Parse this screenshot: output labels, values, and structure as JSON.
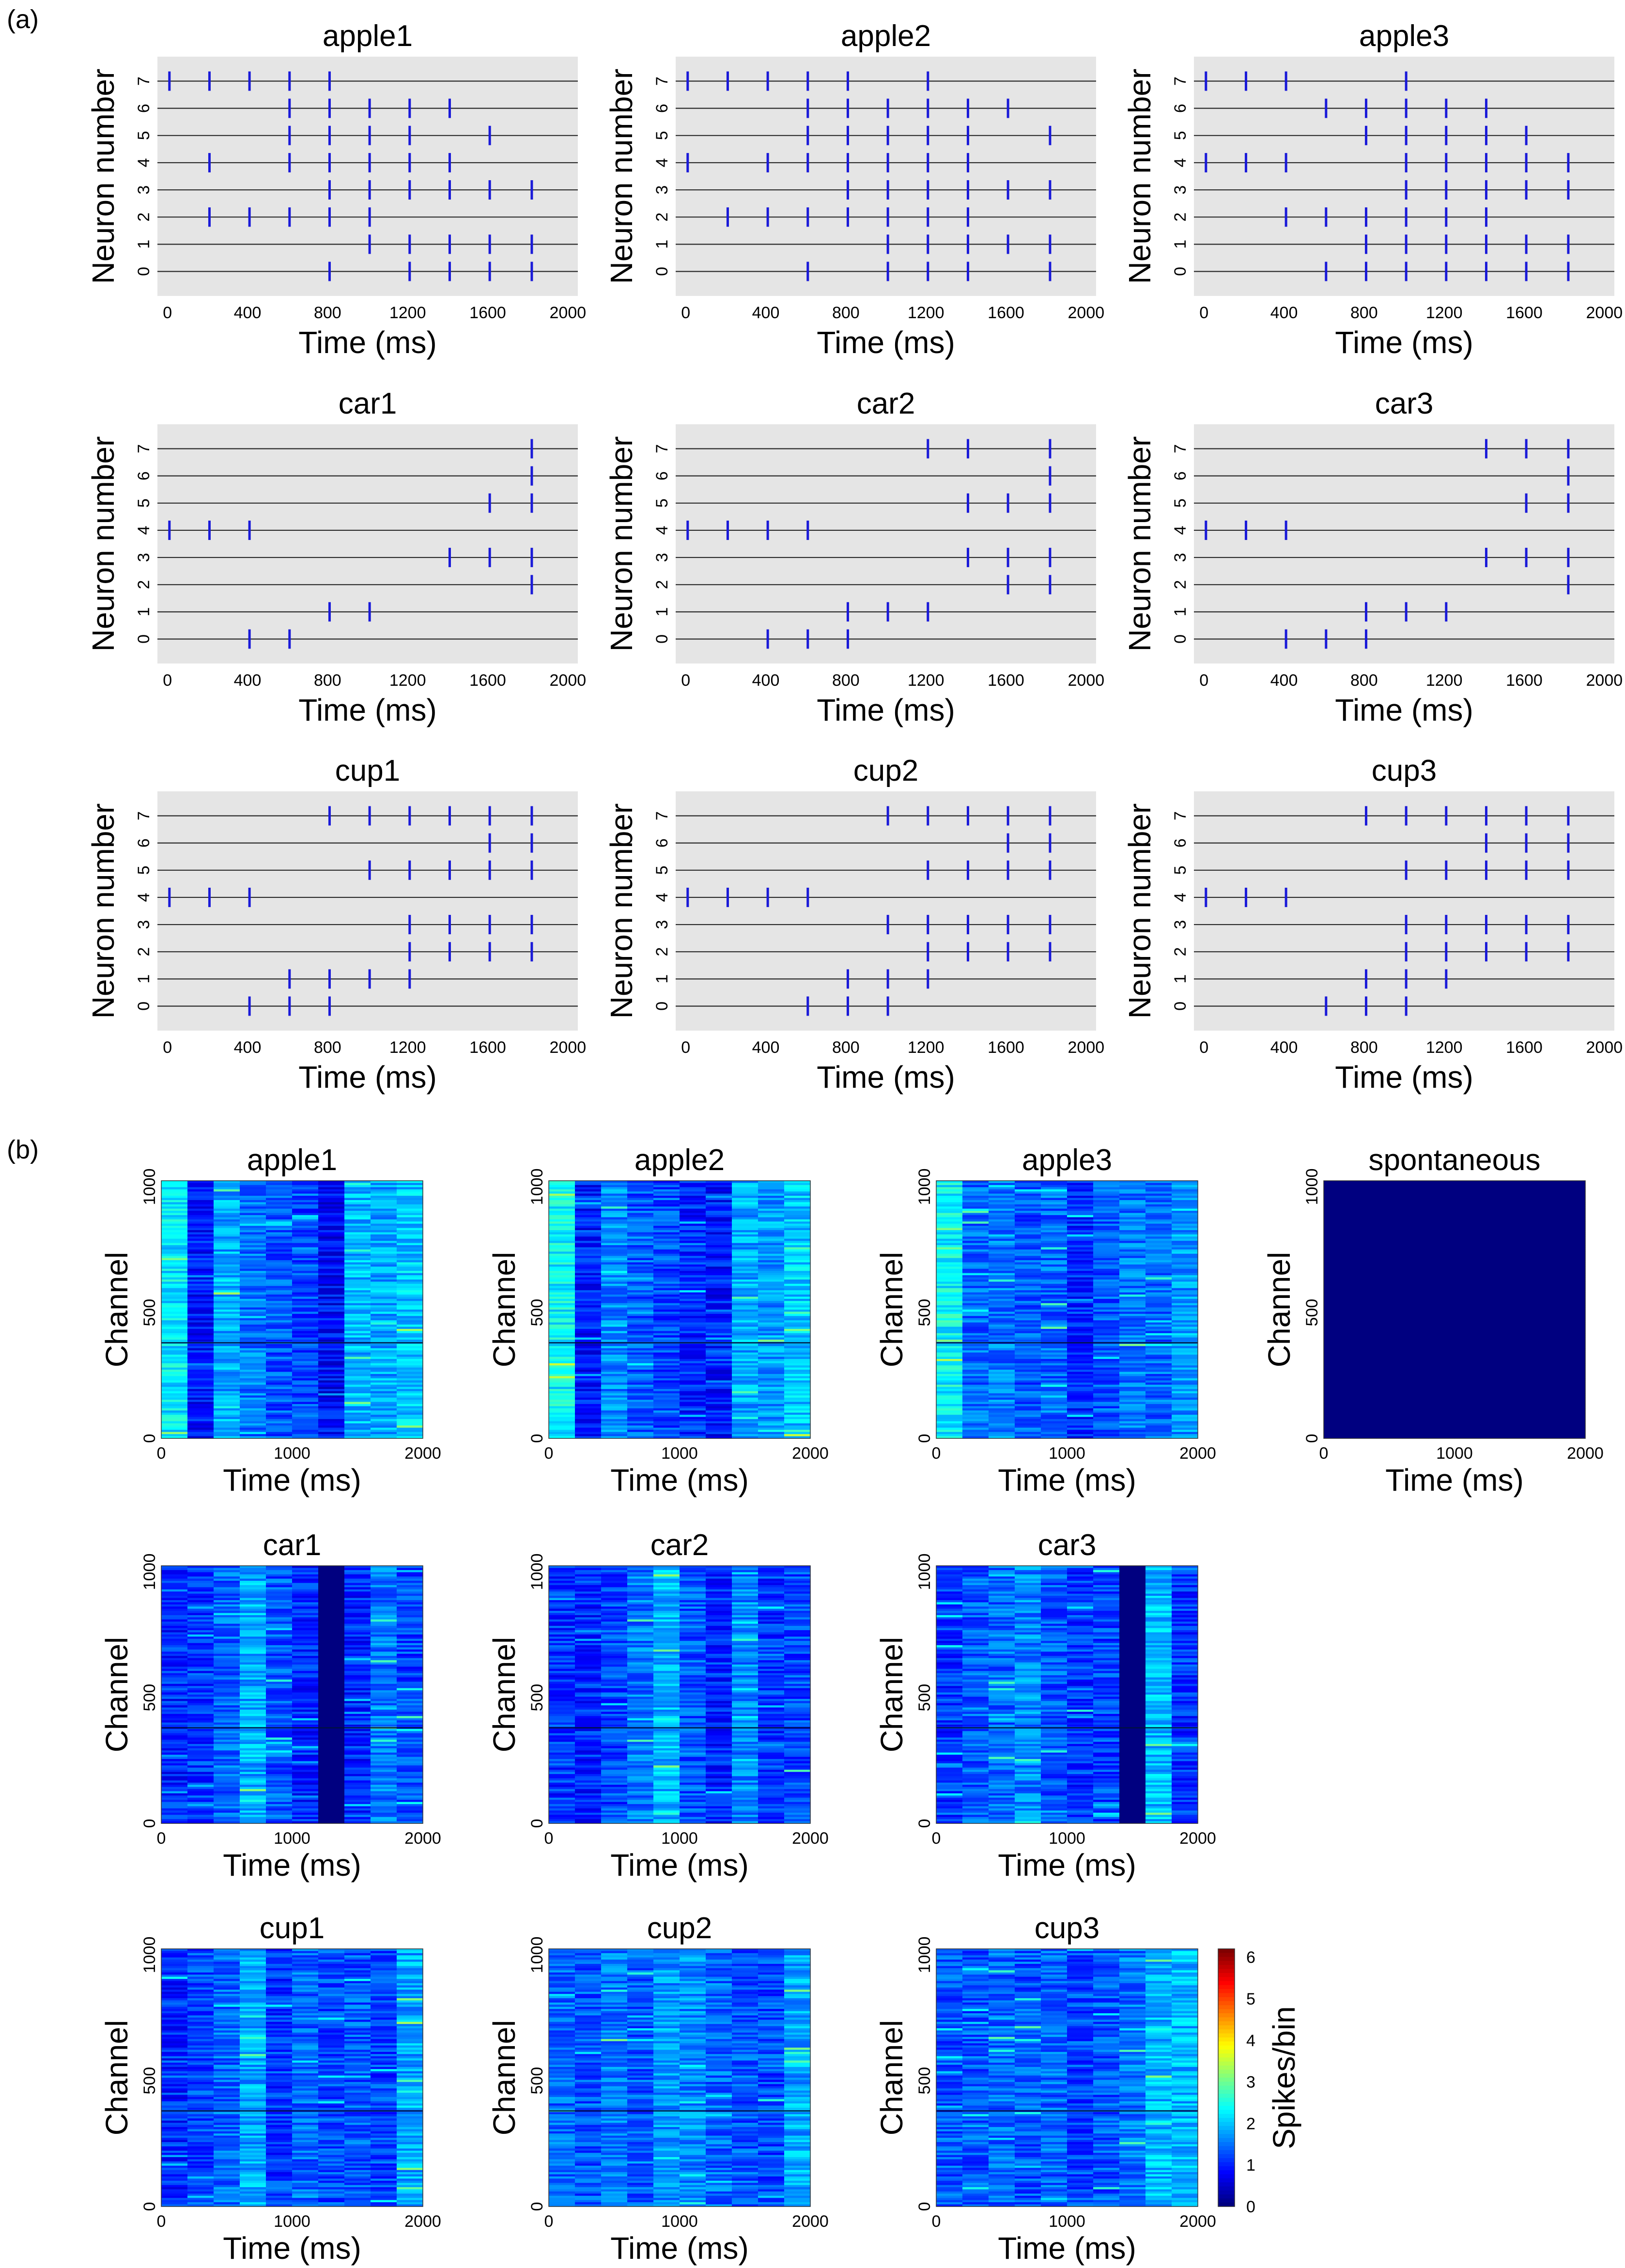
{
  "figure": {
    "panel_a_label": "(a)",
    "panel_b_label": "(b)"
  },
  "chart_data": [
    {
      "type": "raster",
      "panel": "a",
      "x_label": "Time (ms)",
      "y_label": "Neuron number",
      "xlim": [
        -50,
        2050
      ],
      "ylim": [
        -0.9,
        7.9
      ],
      "x_ticks": [
        0,
        400,
        800,
        1200,
        1600,
        2000
      ],
      "y_ticks": [
        0,
        1,
        2,
        3,
        4,
        5,
        6,
        7
      ],
      "spike_marker_color": "#1a1ad8",
      "background_color": "#e5e5e5",
      "subplots": [
        {
          "title": "apple1",
          "spikes": [
            [
              810,
              1210,
              1410,
              1610,
              1820
            ],
            [
              1010,
              1210,
              1410,
              1610,
              1820
            ],
            [
              210,
              410,
              610,
              810,
              1010
            ],
            [
              810,
              1010,
              1210,
              1410,
              1610,
              1820
            ],
            [
              210,
              610,
              810,
              1010,
              1210,
              1410
            ],
            [
              610,
              810,
              1010,
              1210,
              1610
            ],
            [
              610,
              810,
              1010,
              1210,
              1410
            ],
            [
              10,
              210,
              410,
              610,
              810
            ]
          ]
        },
        {
          "title": "apple2",
          "spikes": [
            [
              610,
              1010,
              1210,
              1410,
              1820
            ],
            [
              1010,
              1210,
              1410,
              1610,
              1820
            ],
            [
              210,
              410,
              610,
              810,
              1010,
              1210,
              1410
            ],
            [
              810,
              1010,
              1210,
              1410,
              1610,
              1820
            ],
            [
              10,
              410,
              610,
              810,
              1010,
              1210,
              1410
            ],
            [
              610,
              810,
              1010,
              1210,
              1410,
              1820
            ],
            [
              610,
              810,
              1010,
              1210,
              1410,
              1610
            ],
            [
              10,
              210,
              410,
              610,
              810,
              1210
            ]
          ]
        },
        {
          "title": "apple3",
          "spikes": [
            [
              610,
              810,
              1010,
              1210,
              1410,
              1610,
              1820
            ],
            [
              810,
              1010,
              1210,
              1410,
              1610,
              1820
            ],
            [
              410,
              610,
              810,
              1010,
              1210,
              1410
            ],
            [
              1010,
              1210,
              1410,
              1610,
              1820
            ],
            [
              10,
              210,
              410,
              1010,
              1210,
              1410,
              1610,
              1820
            ],
            [
              810,
              1010,
              1210,
              1410,
              1610
            ],
            [
              610,
              810,
              1010,
              1210,
              1410
            ],
            [
              10,
              210,
              410,
              1010
            ]
          ]
        },
        {
          "title": "car1",
          "spikes": [
            [
              410,
              610
            ],
            [
              810,
              1010
            ],
            [
              1820
            ],
            [
              1410,
              1610,
              1820
            ],
            [
              10,
              210,
              410
            ],
            [
              1610,
              1820
            ],
            [
              1820
            ],
            [
              1820
            ]
          ]
        },
        {
          "title": "car2",
          "spikes": [
            [
              410,
              610,
              810
            ],
            [
              810,
              1010,
              1210
            ],
            [
              1610,
              1820
            ],
            [
              1410,
              1610,
              1820
            ],
            [
              10,
              210,
              410,
              610
            ],
            [
              1410,
              1610,
              1820
            ],
            [
              1820
            ],
            [
              1210,
              1410,
              1820
            ]
          ]
        },
        {
          "title": "car3",
          "spikes": [
            [
              410,
              610,
              810
            ],
            [
              810,
              1010,
              1210
            ],
            [
              1820
            ],
            [
              1410,
              1610,
              1820
            ],
            [
              10,
              210,
              410
            ],
            [
              1610,
              1820
            ],
            [
              1820
            ],
            [
              1410,
              1610,
              1820
            ]
          ]
        },
        {
          "title": "cup1",
          "spikes": [
            [
              410,
              610,
              810
            ],
            [
              610,
              810,
              1010,
              1210
            ],
            [
              1210,
              1410,
              1610,
              1820
            ],
            [
              1210,
              1410,
              1610,
              1820
            ],
            [
              10,
              210,
              410
            ],
            [
              1010,
              1210,
              1410,
              1610,
              1820
            ],
            [
              1610,
              1820
            ],
            [
              810,
              1010,
              1210,
              1410,
              1610,
              1820
            ]
          ]
        },
        {
          "title": "cup2",
          "spikes": [
            [
              610,
              810,
              1010
            ],
            [
              810,
              1010,
              1210
            ],
            [
              1210,
              1410,
              1610,
              1820
            ],
            [
              1010,
              1210,
              1410,
              1610,
              1820
            ],
            [
              10,
              210,
              410,
              610
            ],
            [
              1210,
              1410,
              1610,
              1820
            ],
            [
              1610,
              1820
            ],
            [
              1010,
              1210,
              1410,
              1610,
              1820
            ]
          ]
        },
        {
          "title": "cup3",
          "spikes": [
            [
              610,
              810,
              1010
            ],
            [
              810,
              1010,
              1210
            ],
            [
              1010,
              1210,
              1410,
              1610,
              1820
            ],
            [
              1010,
              1210,
              1410,
              1610,
              1820
            ],
            [
              10,
              210,
              410
            ],
            [
              1010,
              1210,
              1410,
              1610,
              1820
            ],
            [
              1410,
              1610,
              1820
            ],
            [
              810,
              1010,
              1210,
              1410,
              1610,
              1820
            ]
          ]
        }
      ]
    },
    {
      "type": "heatmap",
      "panel": "b",
      "x_label": "Time (ms)",
      "y_label": "Channel",
      "xlim": [
        0,
        2000
      ],
      "ylim": [
        0,
        1024
      ],
      "x_ticks": [
        0,
        1000,
        2000
      ],
      "y_ticks": [
        0,
        500,
        1000
      ],
      "channels": 1024,
      "time_bin_ms": 200,
      "colorscale": "jet",
      "colorbar": {
        "label": "Spikes/bin",
        "min": 0,
        "max": 6.2,
        "ticks": [
          0,
          1,
          2,
          3,
          4,
          5,
          6
        ]
      },
      "subplots": [
        {
          "title": "apple1",
          "bin_means": [
            2.2,
            0.9,
            1.8,
            1.5,
            1.3,
            1.2,
            0.8,
            1.9,
            1.8,
            2.0
          ]
        },
        {
          "title": "apple2",
          "bin_means": [
            2.3,
            0.9,
            1.6,
            1.3,
            1.2,
            1.0,
            0.9,
            1.8,
            1.7,
            2.0
          ]
        },
        {
          "title": "apple3",
          "bin_means": [
            2.3,
            1.4,
            1.5,
            1.3,
            1.4,
            1.0,
            1.3,
            1.5,
            1.4,
            1.7
          ]
        },
        {
          "title": "spontaneous",
          "bin_means": [
            0,
            0,
            0,
            0,
            0,
            0,
            0,
            0,
            0,
            0
          ]
        },
        {
          "title": "car1",
          "bin_means": [
            1.0,
            1.1,
            1.4,
            1.8,
            1.3,
            1.0,
            0.0,
            1.0,
            1.5,
            1.2
          ]
        },
        {
          "title": "car2",
          "bin_means": [
            1.1,
            1.0,
            1.2,
            1.5,
            1.9,
            1.3,
            1.0,
            1.6,
            1.1,
            1.2
          ]
        },
        {
          "title": "car3",
          "bin_means": [
            1.1,
            1.3,
            1.4,
            1.6,
            1.3,
            1.1,
            1.2,
            0.0,
            1.9,
            1.1
          ]
        },
        {
          "title": "cup1",
          "bin_means": [
            1.0,
            1.2,
            1.4,
            1.8,
            1.1,
            1.4,
            1.2,
            1.3,
            1.2,
            1.8
          ]
        },
        {
          "title": "cup2",
          "bin_means": [
            1.4,
            1.3,
            1.5,
            1.3,
            1.7,
            1.6,
            1.4,
            1.3,
            1.2,
            1.8
          ]
        },
        {
          "title": "cup3",
          "bin_means": [
            1.3,
            1.3,
            1.4,
            1.3,
            1.4,
            1.2,
            1.3,
            1.5,
            1.9,
            1.9
          ]
        }
      ]
    }
  ]
}
